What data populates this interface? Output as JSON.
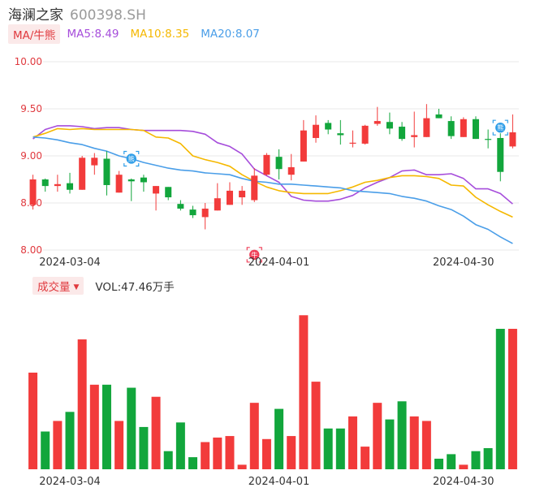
{
  "header": {
    "name": "海澜之家",
    "code": "600398.SH"
  },
  "ma_legend": {
    "tag": "MA/牛熊",
    "items": [
      {
        "label": "MA5:8.49",
        "color": "#a64ddb"
      },
      {
        "label": "MA10:8.35",
        "color": "#f5b800"
      },
      {
        "label": "MA20:8.07",
        "color": "#4a9ee8"
      }
    ]
  },
  "volume_legend": {
    "tag": "成交量",
    "value": "VOL:47.46万手"
  },
  "colors": {
    "up": "#f23b3b",
    "down": "#12a63c",
    "grid": "#e9e9e9",
    "axis_text": "#e0393e",
    "date_text": "#333333"
  },
  "markers": [
    {
      "index": 8,
      "kind": "bear",
      "label": "熊",
      "color": "#2f9ee8",
      "price": 8.97
    },
    {
      "index": 18,
      "kind": "bull",
      "label": "牛",
      "color": "#f0415a",
      "price": 7.95
    },
    {
      "index": 38,
      "kind": "bear",
      "label": "熊",
      "color": "#2f9ee8",
      "price": 9.3
    }
  ],
  "chart_data": {
    "type": "candlestick",
    "price_axis": {
      "ylim": [
        8.0,
        10.0
      ],
      "ticks": [
        "10.00",
        "9.50",
        "9.00",
        "8.50",
        "8.00"
      ]
    },
    "volume_axis": {
      "ylim": [
        0,
        1
      ]
    },
    "x_labels": [
      {
        "index": 3,
        "label": "2024-03-04"
      },
      {
        "index": 20,
        "label": "2024-04-01"
      },
      {
        "index": 35,
        "label": "2024-04-30"
      }
    ],
    "candles": [
      {
        "o": 8.48,
        "h": 8.8,
        "l": 8.43,
        "c": 8.75
      },
      {
        "o": 8.75,
        "h": 8.76,
        "l": 8.62,
        "c": 8.68
      },
      {
        "o": 8.68,
        "h": 8.8,
        "l": 8.62,
        "c": 8.7
      },
      {
        "o": 8.71,
        "h": 8.82,
        "l": 8.6,
        "c": 8.64
      },
      {
        "o": 8.64,
        "h": 9.0,
        "l": 8.64,
        "c": 8.98
      },
      {
        "o": 8.9,
        "h": 9.03,
        "l": 8.8,
        "c": 8.98
      },
      {
        "o": 8.97,
        "h": 9.05,
        "l": 8.58,
        "c": 8.69
      },
      {
        "o": 8.61,
        "h": 8.84,
        "l": 8.61,
        "c": 8.8
      },
      {
        "o": 8.75,
        "h": 8.76,
        "l": 8.52,
        "c": 8.73
      },
      {
        "o": 8.77,
        "h": 8.8,
        "l": 8.62,
        "c": 8.72
      },
      {
        "o": 8.6,
        "h": 8.68,
        "l": 8.42,
        "c": 8.68
      },
      {
        "o": 8.67,
        "h": 8.67,
        "l": 8.53,
        "c": 8.56
      },
      {
        "o": 8.49,
        "h": 8.53,
        "l": 8.42,
        "c": 8.44
      },
      {
        "o": 8.43,
        "h": 8.47,
        "l": 8.34,
        "c": 8.37
      },
      {
        "o": 8.35,
        "h": 8.5,
        "l": 8.22,
        "c": 8.44
      },
      {
        "o": 8.42,
        "h": 8.71,
        "l": 8.42,
        "c": 8.55
      },
      {
        "o": 8.48,
        "h": 8.72,
        "l": 8.48,
        "c": 8.63
      },
      {
        "o": 8.56,
        "h": 8.68,
        "l": 8.48,
        "c": 8.63
      },
      {
        "o": 8.53,
        "h": 8.87,
        "l": 8.51,
        "c": 8.79
      },
      {
        "o": 8.8,
        "h": 9.03,
        "l": 8.79,
        "c": 9.01
      },
      {
        "o": 8.99,
        "h": 9.07,
        "l": 8.75,
        "c": 8.86
      },
      {
        "o": 8.8,
        "h": 9.02,
        "l": 8.74,
        "c": 8.88
      },
      {
        "o": 8.94,
        "h": 9.38,
        "l": 8.94,
        "c": 9.27
      },
      {
        "o": 9.19,
        "h": 9.43,
        "l": 9.14,
        "c": 9.33
      },
      {
        "o": 9.35,
        "h": 9.38,
        "l": 9.23,
        "c": 9.28
      },
      {
        "o": 9.24,
        "h": 9.38,
        "l": 9.12,
        "c": 9.22
      },
      {
        "o": 9.13,
        "h": 9.27,
        "l": 9.09,
        "c": 9.14
      },
      {
        "o": 9.13,
        "h": 9.33,
        "l": 9.12,
        "c": 9.32
      },
      {
        "o": 9.34,
        "h": 9.52,
        "l": 9.32,
        "c": 9.37
      },
      {
        "o": 9.36,
        "h": 9.46,
        "l": 9.23,
        "c": 9.29
      },
      {
        "o": 9.31,
        "h": 9.36,
        "l": 9.16,
        "c": 9.18
      },
      {
        "o": 9.2,
        "h": 9.47,
        "l": 9.09,
        "c": 9.22
      },
      {
        "o": 9.2,
        "h": 9.55,
        "l": 9.2,
        "c": 9.4
      },
      {
        "o": 9.44,
        "h": 9.5,
        "l": 9.4,
        "c": 9.4
      },
      {
        "o": 9.37,
        "h": 9.42,
        "l": 9.18,
        "c": 9.21
      },
      {
        "o": 9.2,
        "h": 9.41,
        "l": 9.2,
        "c": 9.39
      },
      {
        "o": 9.39,
        "h": 9.42,
        "l": 9.18,
        "c": 9.18
      },
      {
        "o": 9.18,
        "h": 9.28,
        "l": 9.08,
        "c": 9.17
      },
      {
        "o": 9.19,
        "h": 9.24,
        "l": 8.73,
        "c": 8.83
      },
      {
        "o": 9.1,
        "h": 9.44,
        "l": 9.08,
        "c": 9.25
      }
    ],
    "volume": [
      0.64,
      0.25,
      0.32,
      0.38,
      0.86,
      0.56,
      0.56,
      0.32,
      0.54,
      0.28,
      0.48,
      0.12,
      0.31,
      0.08,
      0.18,
      0.21,
      0.22,
      0.03,
      0.44,
      0.2,
      0.4,
      0.22,
      1.02,
      0.58,
      0.27,
      0.27,
      0.35,
      0.15,
      0.44,
      0.33,
      0.45,
      0.35,
      0.32,
      0.07,
      0.1,
      0.03,
      0.12,
      0.14,
      0.93,
      0.93
    ],
    "series": [
      {
        "name": "MA5",
        "color": "#a64ddb",
        "values": [
          9.18,
          9.28,
          9.32,
          9.32,
          9.31,
          9.29,
          9.3,
          9.3,
          9.28,
          9.27,
          9.27,
          9.27,
          9.27,
          9.26,
          9.23,
          9.14,
          9.1,
          9.02,
          8.86,
          8.79,
          8.72,
          8.57,
          8.53,
          8.52,
          8.52,
          8.54,
          8.58,
          8.66,
          8.72,
          8.77,
          8.84,
          8.85,
          8.8,
          8.8,
          8.81,
          8.76,
          8.65,
          8.65,
          8.6,
          8.49
        ]
      },
      {
        "name": "MA10",
        "color": "#f5b800",
        "values": [
          9.2,
          9.24,
          9.29,
          9.28,
          9.29,
          9.28,
          9.28,
          9.28,
          9.28,
          9.27,
          9.2,
          9.19,
          9.13,
          9.0,
          8.96,
          8.93,
          8.89,
          8.8,
          8.73,
          8.67,
          8.63,
          8.61,
          8.6,
          8.6,
          8.6,
          8.63,
          8.67,
          8.72,
          8.74,
          8.77,
          8.79,
          8.79,
          8.78,
          8.76,
          8.69,
          8.68,
          8.56,
          8.48,
          8.41,
          8.35
        ]
      },
      {
        "name": "MA20",
        "color": "#4a9ee8",
        "values": [
          9.2,
          9.19,
          9.17,
          9.14,
          9.12,
          9.08,
          9.05,
          9.0,
          8.97,
          8.93,
          8.9,
          8.87,
          8.85,
          8.84,
          8.82,
          8.81,
          8.8,
          8.76,
          8.73,
          8.72,
          8.7,
          8.7,
          8.69,
          8.68,
          8.67,
          8.66,
          8.63,
          8.62,
          8.61,
          8.6,
          8.57,
          8.55,
          8.52,
          8.47,
          8.43,
          8.36,
          8.27,
          8.22,
          8.14,
          8.07
        ]
      }
    ]
  }
}
